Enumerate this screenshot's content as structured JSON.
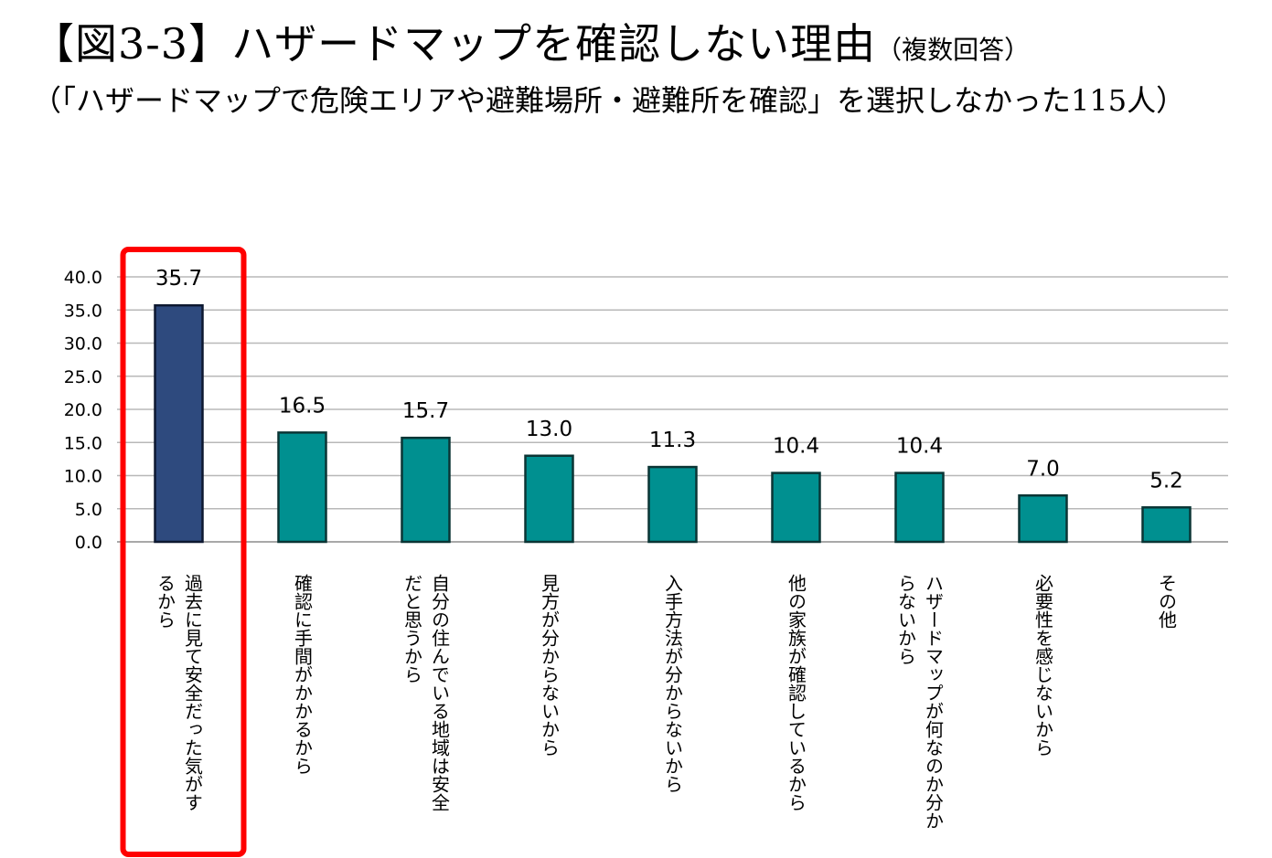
{
  "header": {
    "title": "【図3-3】ハザードマップを確認しない理由",
    "title_note": "（複数回答）",
    "subtitle": "（「ハザードマップで危険エリアや避難場所・避難所を確認」を選択しなかった115人）"
  },
  "colors": {
    "highlight_bar": "#2e4a7e",
    "highlight_bar_border": "#0d1830",
    "bar": "#009090",
    "bar_border": "#0b3535",
    "highlight_frame": "#ff0000"
  },
  "chart_data": {
    "type": "bar",
    "categories": [
      [
        "過去に見て安全だった気がす",
        "るから"
      ],
      [
        "確認に手間がかかるから"
      ],
      [
        "自分の住んでいる地域は安全",
        "だと思うから"
      ],
      [
        "見方が分からないから"
      ],
      [
        "入手方法が分からないから"
      ],
      [
        "他の家族が確認しているから"
      ],
      [
        "ハザードマップが何なのか分か",
        "らないから"
      ],
      [
        "必要性を感じないから"
      ],
      [
        "その他"
      ]
    ],
    "values": [
      35.7,
      16.5,
      15.7,
      13.0,
      11.3,
      10.4,
      10.4,
      7.0,
      5.2
    ],
    "value_labels": [
      "35.7",
      "16.5",
      "15.7",
      "13.0",
      "11.3",
      "10.4",
      "10.4",
      "7.0",
      "5.2"
    ],
    "ylim": [
      0,
      40
    ],
    "yticks": [
      "0.0",
      "5.0",
      "10.0",
      "15.0",
      "20.0",
      "25.0",
      "30.0",
      "35.0",
      "40.0"
    ],
    "grid": true,
    "highlighted_index": 0,
    "legend": "none"
  }
}
